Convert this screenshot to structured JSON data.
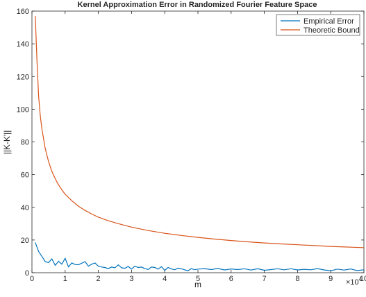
{
  "chart_data": {
    "type": "line",
    "title": "Kernel Approximation Error in Randomized Fourier Feature Space",
    "xlabel": "m",
    "ylabel": "||K-K'||",
    "x_exponent_label": "×10",
    "x_exponent_power": "4",
    "xlim": [
      0,
      10
    ],
    "ylim": [
      0,
      160
    ],
    "xticks": [
      0,
      1,
      2,
      3,
      4,
      5,
      6,
      7,
      8,
      9,
      10
    ],
    "yticks": [
      0,
      20,
      40,
      60,
      80,
      100,
      120,
      140,
      160
    ],
    "grid": false,
    "legend_position": "top-right",
    "series": [
      {
        "name": "Empirical Error",
        "color": "#0072BD",
        "x": [
          0.1,
          0.2,
          0.3,
          0.4,
          0.5,
          0.6,
          0.7,
          0.8,
          0.9,
          1.0,
          1.1,
          1.2,
          1.3,
          1.4,
          1.5,
          1.6,
          1.7,
          1.8,
          1.9,
          2.0,
          2.1,
          2.2,
          2.3,
          2.4,
          2.5,
          2.6,
          2.7,
          2.8,
          2.9,
          3.0,
          3.1,
          3.2,
          3.3,
          3.4,
          3.5,
          3.6,
          3.7,
          3.8,
          3.9,
          4.0,
          4.1,
          4.2,
          4.3,
          4.4,
          4.5,
          4.6,
          4.7,
          4.8,
          4.9,
          5.0,
          5.2,
          5.4,
          5.6,
          5.8,
          6.0,
          6.2,
          6.4,
          6.6,
          6.8,
          7.0,
          7.2,
          7.4,
          7.6,
          7.8,
          8.0,
          8.2,
          8.4,
          8.6,
          8.8,
          9.0,
          9.2,
          9.4,
          9.6,
          9.8,
          10.0
        ],
        "values": [
          18.5,
          13,
          10,
          6.8,
          6.2,
          8.5,
          4.5,
          7,
          5.2,
          8.8,
          3.6,
          6,
          5,
          4.9,
          5.8,
          6.8,
          4,
          5.2,
          6,
          4,
          3.5,
          3.2,
          2.5,
          3.5,
          3,
          4.8,
          3,
          2.7,
          3.8,
          2.2,
          4,
          3.2,
          3.5,
          2.5,
          2,
          3.5,
          3.2,
          2.2,
          3.7,
          1.5,
          3.2,
          2.3,
          1.8,
          2.8,
          2.4,
          1.8,
          1.2,
          2.5,
          1.8,
          2.2,
          2.5,
          1.9,
          2.6,
          1.7,
          2.3,
          1.9,
          2.4,
          1.6,
          2.4,
          1.5,
          1.9,
          2.4,
          1.8,
          2.4,
          1.7,
          2.1,
          1.8,
          2.5,
          1.7,
          1.2,
          2.2,
          1.6,
          2.3,
          1.3,
          1.8
        ]
      },
      {
        "name": "Theoretic Bound",
        "color": "#D95319",
        "x": [
          0.1,
          0.15,
          0.2,
          0.25,
          0.3,
          0.4,
          0.5,
          0.6,
          0.7,
          0.8,
          0.9,
          1.0,
          1.2,
          1.4,
          1.6,
          1.8,
          2.0,
          2.3,
          2.6,
          3.0,
          3.5,
          4.0,
          4.5,
          5.0,
          5.5,
          6.0,
          6.5,
          7.0,
          7.5,
          8.0,
          8.5,
          9.0,
          9.5,
          10.0
        ],
        "values": [
          157,
          130,
          108,
          96,
          88,
          76,
          68,
          62,
          57.5,
          53.8,
          50.7,
          48,
          44,
          40.7,
          38.1,
          35.9,
          34,
          31.8,
          30,
          27.9,
          25.8,
          24.1,
          22.8,
          21.6,
          20.6,
          19.7,
          18.9,
          18.2,
          17.6,
          17.1,
          16.6,
          16.1,
          15.7,
          15.3
        ]
      }
    ]
  }
}
